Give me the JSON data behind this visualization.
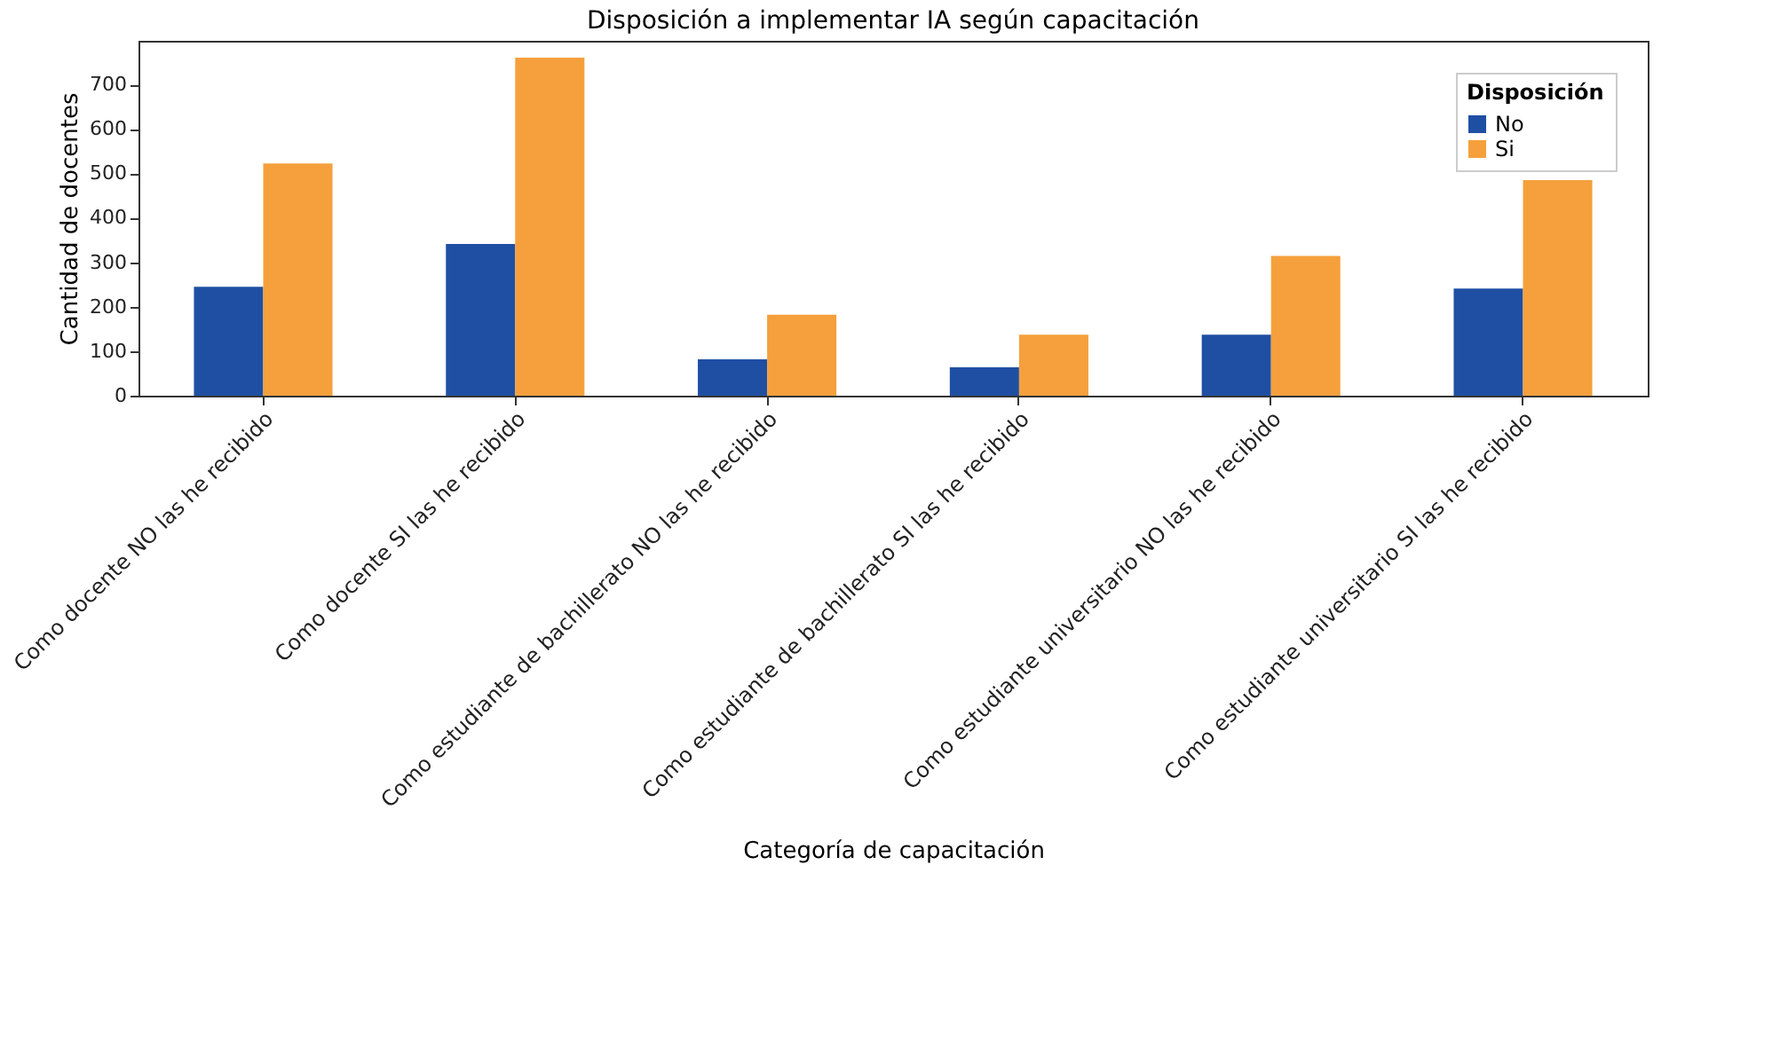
{
  "chart_data": {
    "type": "bar",
    "title": "Disposición a implementar IA según capacitación",
    "xlabel": "Categoría de capacitación",
    "ylabel": "Cantidad de docentes",
    "legend_title": "Disposición",
    "categories": [
      "Como docente NO las he recibido",
      "Como docente SI las he recibido",
      "Como estudiante de bachillerato NO las he recibido",
      "Como estudiante de bachillerato SI las he recibido",
      "Como estudiante universitario NO las he recibido",
      "Como estudiante universitario SI las he recibido"
    ],
    "series": [
      {
        "name": "No",
        "color": "#1f4fa3",
        "values": [
          245,
          341,
          82,
          64,
          137,
          241
        ]
      },
      {
        "name": "Si",
        "color": "#f5a03c",
        "values": [
          522,
          760,
          182,
          137,
          314,
          485
        ]
      }
    ],
    "ylim": [
      0,
      798
    ],
    "yticks": [
      0,
      100,
      200,
      300,
      400,
      500,
      600,
      700
    ],
    "grid": false,
    "legend": "top right"
  }
}
